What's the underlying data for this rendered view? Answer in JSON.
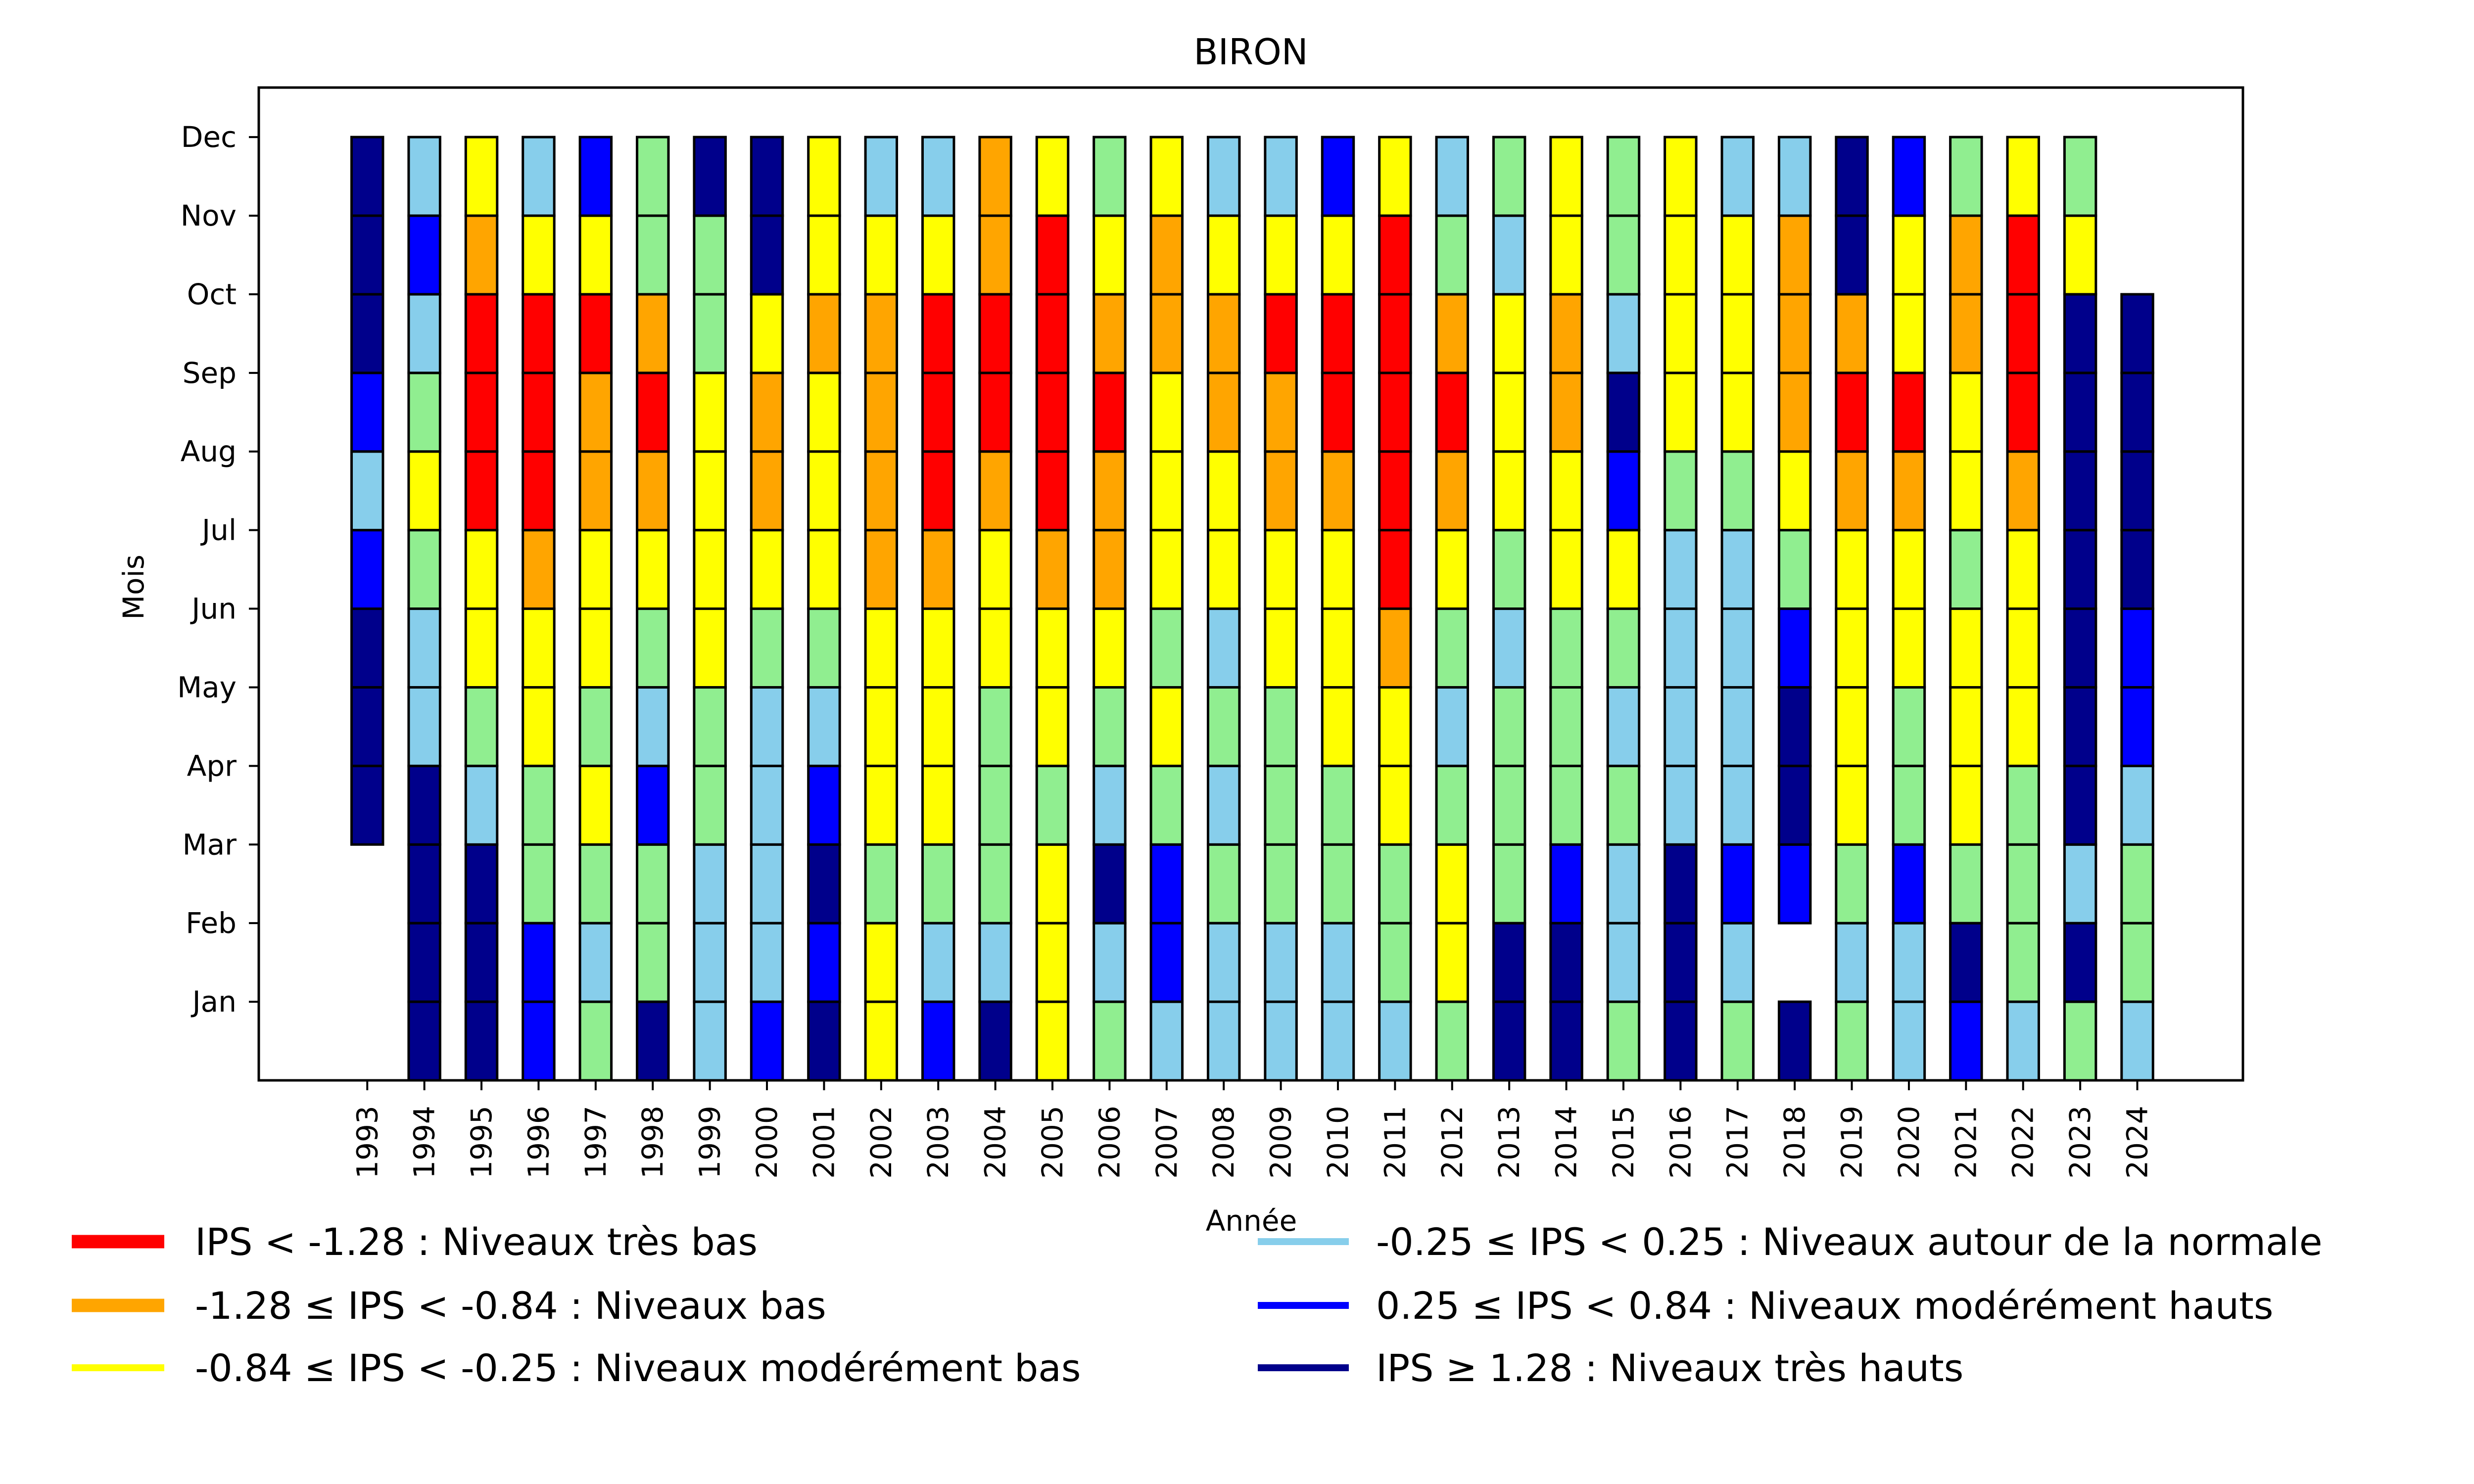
{
  "chart_data": {
    "type": "heatmap",
    "title": "BIRON",
    "xlabel": "Année",
    "ylabel": "Mois",
    "x_categories": [
      1993,
      1994,
      1995,
      1996,
      1997,
      1998,
      1999,
      2000,
      2001,
      2002,
      2003,
      2004,
      2005,
      2006,
      2007,
      2008,
      2009,
      2010,
      2011,
      2012,
      2013,
      2014,
      2015,
      2016,
      2017,
      2018,
      2019,
      2020,
      2021,
      2022,
      2023,
      2024
    ],
    "y_tick_labels": [
      "Jan",
      "Feb",
      "Mar",
      "Apr",
      "May",
      "Jun",
      "Jul",
      "Aug",
      "Sep",
      "Oct",
      "Nov",
      "Dec"
    ],
    "xlim": [
      1991.1,
      2025.85
    ],
    "ylim": [
      0,
      12.63
    ],
    "grid": false,
    "legend_position": "bottom",
    "category_colors": {
      "R": "#ff0000",
      "O": "#ffa500",
      "Y": "#ffff00",
      "L": "#87ceeb",
      "G": "#90ee90",
      "B": "#0000ff",
      "N": "#00008b"
    },
    "category_meaning": {
      "R": "IPS < -1.28 : Niveaux très bas",
      "O": "-1.28 ≤ IPS < -0.84 : Niveaux bas",
      "Y": "-0.84 ≤ IPS < -0.25 : Niveaux modérément bas",
      "L": "-0.25 ≤ IPS < 0.25 : Niveaux autour de la normale",
      "B": "0.25 ≤ IPS < 0.84 : Niveaux modérément hauts",
      "N": "IPS ≥ 1.28 : Niveaux très hauts",
      "G": "(not shown in legend)"
    },
    "legend": [
      {
        "label": "IPS < -1.28 : Niveaux très bas",
        "color": "#ff0000",
        "weight": "thick"
      },
      {
        "label": "-1.28 ≤ IPS < -0.84 : Niveaux bas",
        "color": "#ffa500",
        "weight": "thick"
      },
      {
        "label": "-0.84 ≤ IPS < -0.25 : Niveaux modérément bas",
        "color": "#ffff00",
        "weight": "thin"
      },
      {
        "label": "-0.25 ≤ IPS < 0.25 : Niveaux autour de la normale",
        "color": "#87ceeb",
        "weight": "thin"
      },
      {
        "label": "0.25 ≤ IPS < 0.84 : Niveaux modérément hauts",
        "color": "#0000ff",
        "weight": "thin"
      },
      {
        "label": "IPS ≥ 1.28 : Niveaux très hauts",
        "color": "#00008b",
        "weight": "thin"
      }
    ],
    "series_note": "values per year listed Jan..Dec; null = no data",
    "values": {
      "1993": [
        null,
        null,
        null,
        "N",
        "N",
        "N",
        "B",
        "L",
        "B",
        "N",
        "N",
        "N"
      ],
      "1994": [
        "N",
        "N",
        "N",
        "N",
        "L",
        "L",
        "G",
        "Y",
        "G",
        "L",
        "B",
        "L"
      ],
      "1995": [
        "N",
        "N",
        "N",
        "L",
        "G",
        "Y",
        "Y",
        "R",
        "R",
        "R",
        "O",
        "Y"
      ],
      "1996": [
        "B",
        "B",
        "G",
        "G",
        "Y",
        "Y",
        "O",
        "R",
        "R",
        "R",
        "Y",
        "L"
      ],
      "1997": [
        "G",
        "L",
        "G",
        "Y",
        "G",
        "Y",
        "Y",
        "O",
        "O",
        "R",
        "Y",
        "B"
      ],
      "1998": [
        "N",
        "G",
        "G",
        "B",
        "L",
        "G",
        "Y",
        "O",
        "R",
        "O",
        "G",
        "G"
      ],
      "1999": [
        "L",
        "L",
        "L",
        "G",
        "G",
        "Y",
        "Y",
        "Y",
        "Y",
        "G",
        "G",
        "N"
      ],
      "2000": [
        "B",
        "L",
        "L",
        "L",
        "L",
        "G",
        "Y",
        "O",
        "O",
        "Y",
        "N",
        "N"
      ],
      "2001": [
        "N",
        "B",
        "N",
        "B",
        "L",
        "G",
        "Y",
        "Y",
        "Y",
        "O",
        "Y",
        "Y"
      ],
      "2002": [
        "Y",
        "Y",
        "G",
        "Y",
        "Y",
        "Y",
        "O",
        "O",
        "O",
        "O",
        "Y",
        "L"
      ],
      "2003": [
        "B",
        "L",
        "G",
        "Y",
        "Y",
        "Y",
        "O",
        "R",
        "R",
        "R",
        "Y",
        "L"
      ],
      "2004": [
        "N",
        "L",
        "G",
        "G",
        "G",
        "Y",
        "Y",
        "O",
        "R",
        "R",
        "O",
        "O"
      ],
      "2005": [
        "Y",
        "Y",
        "Y",
        "G",
        "Y",
        "Y",
        "O",
        "R",
        "R",
        "R",
        "R",
        "Y"
      ],
      "2006": [
        "G",
        "L",
        "N",
        "L",
        "G",
        "Y",
        "O",
        "O",
        "R",
        "O",
        "Y",
        "G"
      ],
      "2007": [
        "L",
        "B",
        "B",
        "G",
        "Y",
        "G",
        "Y",
        "Y",
        "Y",
        "O",
        "O",
        "Y"
      ],
      "2008": [
        "L",
        "L",
        "G",
        "L",
        "G",
        "L",
        "Y",
        "Y",
        "O",
        "O",
        "Y",
        "L"
      ],
      "2009": [
        "L",
        "L",
        "G",
        "G",
        "G",
        "Y",
        "Y",
        "O",
        "O",
        "R",
        "Y",
        "L"
      ],
      "2010": [
        "L",
        "L",
        "G",
        "G",
        "Y",
        "Y",
        "Y",
        "O",
        "R",
        "R",
        "Y",
        "B"
      ],
      "2011": [
        "L",
        "G",
        "G",
        "Y",
        "Y",
        "O",
        "R",
        "R",
        "R",
        "R",
        "R",
        "Y"
      ],
      "2012": [
        "G",
        "Y",
        "Y",
        "G",
        "L",
        "G",
        "Y",
        "O",
        "R",
        "O",
        "G",
        "L"
      ],
      "2013": [
        "N",
        "N",
        "G",
        "G",
        "G",
        "L",
        "G",
        "Y",
        "Y",
        "Y",
        "L",
        "G"
      ],
      "2014": [
        "N",
        "N",
        "B",
        "G",
        "G",
        "G",
        "Y",
        "Y",
        "O",
        "O",
        "Y",
        "Y"
      ],
      "2015": [
        "G",
        "L",
        "L",
        "G",
        "L",
        "G",
        "Y",
        "B",
        "N",
        "L",
        "G",
        "G"
      ],
      "2016": [
        "N",
        "N",
        "N",
        "L",
        "L",
        "L",
        "L",
        "G",
        "Y",
        "Y",
        "Y",
        "Y"
      ],
      "2017": [
        "G",
        "L",
        "B",
        "L",
        "L",
        "L",
        "L",
        "G",
        "Y",
        "Y",
        "Y",
        "L"
      ],
      "2018": [
        "N",
        null,
        "B",
        "N",
        "N",
        "B",
        "G",
        "Y",
        "O",
        "O",
        "O",
        "L"
      ],
      "2019": [
        "G",
        "L",
        "G",
        "Y",
        "Y",
        "Y",
        "Y",
        "O",
        "R",
        "O",
        "N",
        "N"
      ],
      "2020": [
        "L",
        "L",
        "B",
        "G",
        "G",
        "Y",
        "Y",
        "O",
        "R",
        "Y",
        "Y",
        "B"
      ],
      "2021": [
        "B",
        "N",
        "G",
        "Y",
        "Y",
        "Y",
        "G",
        "Y",
        "Y",
        "O",
        "O",
        "G"
      ],
      "2022": [
        "L",
        "G",
        "G",
        "G",
        "Y",
        "Y",
        "Y",
        "O",
        "R",
        "R",
        "R",
        "Y"
      ],
      "2023": [
        "G",
        "N",
        "L",
        "N",
        "N",
        "N",
        "N",
        "N",
        "N",
        "N",
        "Y",
        "G"
      ],
      "2024": [
        "L",
        "G",
        "G",
        "L",
        "B",
        "B",
        "N",
        "N",
        "N",
        "N",
        null,
        null
      ]
    }
  }
}
